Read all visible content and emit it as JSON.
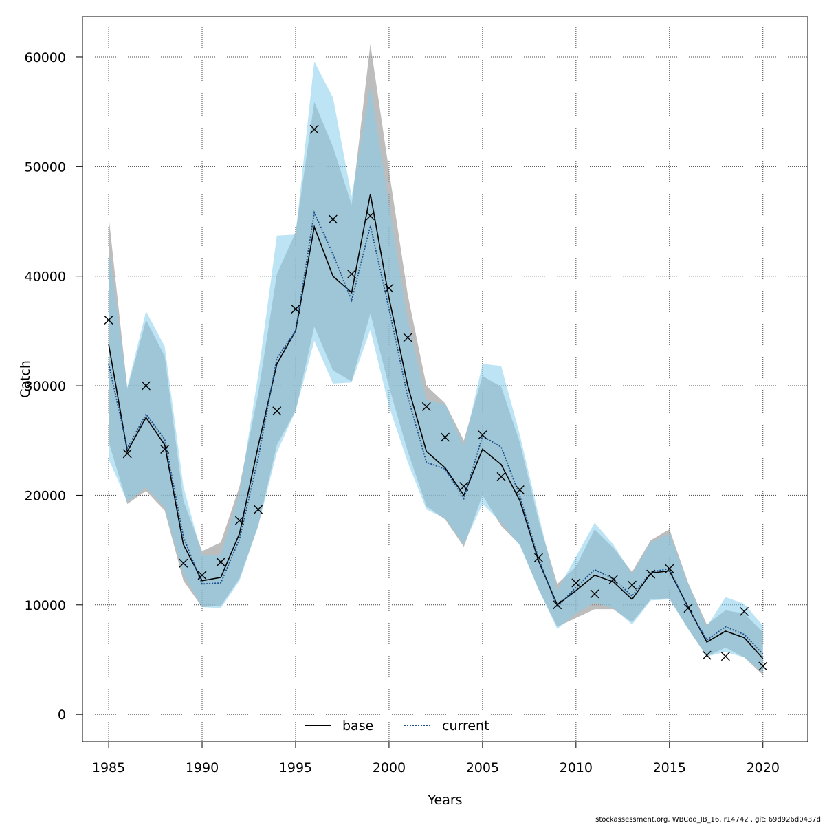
{
  "chart_data": {
    "type": "line",
    "xlabel": "Years",
    "ylabel": "Catch",
    "xlim": [
      1983.6,
      1972.6
    ],
    "ylim": [
      -2500,
      63700
    ],
    "x_ticks": [
      1985,
      1990,
      1995,
      2000,
      2005,
      2010,
      2015,
      2020
    ],
    "y_ticks": [
      0,
      10000,
      20000,
      30000,
      40000,
      50000,
      60000
    ],
    "grid": true,
    "legend_position": "bottom",
    "x": [
      1985,
      1986,
      1987,
      1988,
      1989,
      1990,
      1991,
      1992,
      1993,
      1994,
      1995,
      1996,
      1997,
      1998,
      1999,
      2000,
      2001,
      2002,
      2003,
      2004,
      2005,
      2006,
      2007,
      2008,
      2009,
      2010,
      2011,
      2012,
      2013,
      2014,
      2015,
      2016,
      2017,
      2018,
      2019,
      2020
    ],
    "series": [
      {
        "name": "base",
        "color": "#000000",
        "band_color": "#999999",
        "values": [
          33800,
          24000,
          27100,
          24600,
          15500,
          12200,
          12500,
          16500,
          24500,
          32000,
          35000,
          44500,
          40000,
          38500,
          47500,
          38000,
          30000,
          24000,
          22500,
          20000,
          24200,
          22800,
          19500,
          14000,
          10000,
          11300,
          12700,
          12100,
          10500,
          12900,
          13100,
          9800,
          6600,
          7600,
          7000,
          5100
        ],
        "upper": [
          45500,
          29700,
          36000,
          32700,
          19500,
          14900,
          15700,
          20800,
          29300,
          40200,
          44000,
          55900,
          51800,
          46500,
          61200,
          49600,
          38300,
          30000,
          28400,
          25000,
          30900,
          29900,
          24800,
          17700,
          11900,
          13500,
          16900,
          15200,
          13000,
          15900,
          16900,
          12000,
          8200,
          9500,
          9200,
          7500
        ],
        "lower": [
          24900,
          19200,
          20400,
          18600,
          12200,
          9800,
          9900,
          12400,
          17200,
          24600,
          27700,
          35400,
          31400,
          30400,
          36600,
          29900,
          24000,
          19000,
          17800,
          15300,
          20000,
          17200,
          15500,
          11400,
          8000,
          8800,
          9600,
          9600,
          8400,
          10500,
          10600,
          7800,
          5300,
          6100,
          5200,
          3600
        ]
      },
      {
        "name": "current",
        "color": "#1c4e8c",
        "band_color": "#87ceeb",
        "values": [
          32000,
          24300,
          27400,
          25100,
          16200,
          11900,
          12000,
          16000,
          23400,
          32500,
          35000,
          45800,
          42000,
          37800,
          44600,
          37000,
          29000,
          23000,
          22400,
          19700,
          25400,
          24400,
          19900,
          14200,
          9800,
          11600,
          13200,
          12400,
          10800,
          13000,
          13300,
          9700,
          6800,
          8000,
          7300,
          5500
        ],
        "upper": [
          42600,
          29900,
          36800,
          33600,
          20800,
          14500,
          14600,
          20200,
          31000,
          43700,
          43800,
          59600,
          56300,
          47300,
          57400,
          46500,
          36000,
          28700,
          28300,
          24500,
          32000,
          31800,
          25500,
          18200,
          11300,
          14400,
          17500,
          15500,
          12800,
          15700,
          16500,
          11900,
          8000,
          10700,
          10100,
          8100
        ],
        "lower": [
          23300,
          19400,
          20700,
          18900,
          12800,
          9800,
          9700,
          12200,
          17200,
          23900,
          27700,
          34100,
          30200,
          30300,
          35100,
          28100,
          23000,
          18700,
          17900,
          15500,
          19200,
          17500,
          15400,
          11400,
          7800,
          9200,
          10200,
          9700,
          8200,
          10400,
          10500,
          7800,
          5300,
          5700,
          5200,
          3800
        ]
      }
    ],
    "observations": {
      "marker": "x",
      "x": [
        1985,
        1986,
        1987,
        1988,
        1989,
        1990,
        1991,
        1992,
        1993,
        1994,
        1995,
        1996,
        1997,
        1998,
        1999,
        2000,
        2001,
        2002,
        2003,
        2004,
        2005,
        2006,
        2007,
        2008,
        2009,
        2010,
        2011,
        2012,
        2013,
        2014,
        2015,
        2016,
        2017,
        2018,
        2019,
        2020
      ],
      "values": [
        36000,
        23800,
        30000,
        24200,
        13800,
        12700,
        13900,
        17700,
        18700,
        27700,
        37000,
        53400,
        45200,
        40200,
        45500,
        38900,
        34400,
        28100,
        25300,
        20800,
        25500,
        21700,
        20500,
        14300,
        10000,
        12000,
        11000,
        12300,
        11800,
        12800,
        13300,
        9700,
        5400,
        5300,
        9400,
        4400
      ]
    }
  },
  "footer_text": "stockassessment.org, WBCod_IB_16, r14742 , git: 69d926d0437d"
}
